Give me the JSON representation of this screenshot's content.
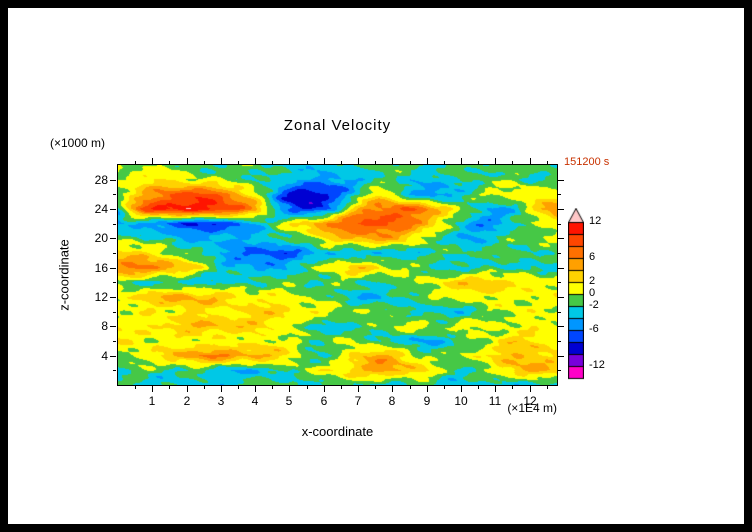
{
  "chart_data": {
    "type": "heatmap",
    "title": "Zonal Velocity",
    "time_annotation": "151200 s",
    "annotation_color": "#C83200",
    "xlabel": "x-coordinate",
    "x_unit": "(×1E4 m)",
    "ylabel": "z-coordinate",
    "y_unit": "(×1000 m)",
    "x_range": [
      0,
      12.8
    ],
    "z_range": [
      0,
      30
    ],
    "x_major_ticks": [
      1,
      2,
      3,
      4,
      5,
      6,
      7,
      8,
      9,
      10,
      11,
      12
    ],
    "x_minor_step": 0.5,
    "z_major_ticks": [
      4,
      8,
      12,
      16,
      20,
      24,
      28
    ],
    "z_minor_step": 2,
    "levels": [
      -12,
      -10,
      -8,
      -6,
      -4,
      -2,
      0,
      2,
      4,
      6,
      8,
      10,
      12
    ],
    "palette": [
      "#FF00C8",
      "#7800DC",
      "#0000D2",
      "#0046FF",
      "#0096FF",
      "#00C8E6",
      "#46C846",
      "#FFFF00",
      "#FFD200",
      "#FFA000",
      "#FF7000",
      "#FF4600",
      "#FF1400"
    ],
    "over_color": "#FFC8C8",
    "colorbar_labels": [
      12,
      6,
      2,
      0,
      -2,
      -6,
      -12
    ],
    "grid": {
      "x0": 0,
      "dx": 0.4,
      "nx": 33,
      "z0": 0,
      "dz": 2,
      "nz": 16
    },
    "values": [
      [
        -2,
        -2,
        -3,
        -3,
        -2,
        -2,
        -2,
        -3,
        -3,
        -2,
        -1,
        -1,
        -2,
        -3,
        -3,
        -2,
        -2,
        -1,
        -2,
        -3,
        -4,
        -3,
        -2,
        -2,
        -3,
        -3,
        -2,
        -2,
        -3,
        -4,
        -4,
        -3,
        -3
      ],
      [
        -2,
        -1,
        -1,
        -2,
        -2,
        -2,
        -2,
        -3,
        -3,
        -4,
        -4,
        -3,
        -2,
        -1,
        0,
        1,
        2,
        3,
        4,
        5,
        5,
        4,
        3,
        1,
        -1,
        -2,
        -2,
        -1,
        2,
        4,
        5,
        4,
        3
      ],
      [
        -1,
        0,
        1,
        2,
        4,
        5,
        6,
        6,
        6,
        5,
        5,
        4,
        3,
        1,
        -2,
        -3,
        -1,
        2,
        4,
        5,
        4,
        2,
        0,
        -1,
        -1,
        0,
        1,
        2,
        3,
        4,
        4,
        3,
        2
      ],
      [
        2,
        2,
        1,
        1,
        0,
        0,
        1,
        1,
        0,
        0,
        1,
        1,
        0,
        0,
        -1,
        -1,
        0,
        0,
        -1,
        -2,
        -3,
        -4,
        -4,
        -4,
        -3,
        -2,
        -1,
        0,
        2,
        3,
        3,
        2,
        1
      ],
      [
        1,
        1,
        2,
        2,
        3,
        4,
        4,
        4,
        4,
        3,
        3,
        2,
        1,
        0,
        -2,
        -3,
        -3,
        -3,
        -2,
        -1,
        0,
        1,
        1,
        0,
        0,
        1,
        1,
        1,
        0,
        0,
        1,
        1,
        1
      ],
      [
        1,
        0,
        1,
        1,
        1,
        2,
        2,
        1,
        1,
        2,
        3,
        3,
        3,
        2,
        1,
        1,
        1,
        0,
        0,
        -1,
        -1,
        -2,
        -3,
        -3,
        -3,
        -3,
        -2,
        -1,
        0,
        1,
        1,
        0,
        0
      ],
      [
        1,
        2,
        3,
        4,
        5,
        5,
        4,
        4,
        3,
        2,
        1,
        1,
        1,
        0,
        0,
        -1,
        -2,
        -3,
        -4,
        -4,
        -3,
        -2,
        -1,
        0,
        0,
        1,
        1,
        1,
        1,
        0,
        1,
        1,
        1
      ],
      [
        -1,
        -2,
        -2,
        -3,
        -3,
        -3,
        -3,
        -3,
        -3,
        -2,
        -2,
        -1,
        -1,
        -1,
        -2,
        -2,
        -1,
        -1,
        -2,
        -2,
        -1,
        -1,
        0,
        1,
        2,
        3,
        4,
        4,
        3,
        2,
        2,
        1,
        1
      ],
      [
        6,
        7,
        7,
        6,
        5,
        3,
        1,
        -1,
        -3,
        -4,
        -4,
        -4,
        -4,
        -3,
        -1,
        1,
        2,
        3,
        3,
        2,
        1,
        0,
        -1,
        -2,
        -3,
        -3,
        -3,
        -2,
        -2,
        -2,
        -3,
        -3,
        -2
      ],
      [
        3,
        3,
        2,
        1,
        0,
        -1,
        -2,
        -3,
        -5,
        -6,
        -7,
        -7,
        -7,
        -6,
        -5,
        -4,
        -3,
        -4,
        -4,
        -4,
        -4,
        -3,
        -3,
        -2,
        -1,
        -1,
        -2,
        -2,
        -1,
        -1,
        -2,
        -2,
        -1
      ],
      [
        -1,
        -1,
        -2,
        -2,
        -3,
        -4,
        -4,
        -4,
        -4,
        -4,
        -3,
        -3,
        -2,
        -1,
        0,
        2,
        3,
        4,
        5,
        5,
        4,
        3,
        1,
        -1,
        -3,
        -4,
        -4,
        -3,
        -2,
        -1,
        -1,
        0,
        0
      ],
      [
        -5,
        -4,
        -4,
        -6,
        -7,
        -8,
        -8,
        -8,
        -7,
        -6,
        -4,
        -2,
        0,
        2,
        4,
        6,
        7,
        8,
        9,
        9,
        8,
        7,
        5,
        3,
        0,
        -3,
        -5,
        -5,
        -4,
        -2,
        -1,
        0,
        1
      ],
      [
        -3,
        4,
        9,
        11,
        11,
        11,
        11,
        11,
        10,
        8,
        5,
        0,
        -5,
        -8,
        -9,
        -7,
        -3,
        2,
        5,
        7,
        8,
        8,
        7,
        5,
        3,
        0,
        -2,
        -4,
        -4,
        -3,
        0,
        4,
        7
      ],
      [
        0,
        2,
        4,
        6,
        8,
        9,
        9,
        8,
        6,
        4,
        1,
        -3,
        -7,
        -9,
        -10,
        -9,
        -7,
        -4,
        0,
        2,
        0,
        -3,
        -5,
        -6,
        -5,
        -3,
        -1,
        0,
        1,
        2,
        2,
        1,
        0
      ],
      [
        0,
        1,
        2,
        2,
        1,
        1,
        0,
        0,
        -1,
        -1,
        -2,
        -2,
        -3,
        -3,
        -4,
        -5,
        -5,
        -4,
        -3,
        -2,
        -2,
        -2,
        -3,
        -3,
        -3,
        -2,
        -2,
        -1,
        -1,
        -1,
        -2,
        -2,
        -1
      ],
      [
        -1,
        -1,
        0,
        0,
        -1,
        -1,
        -2,
        -2,
        -2,
        -1,
        -1,
        -2,
        -2,
        -3,
        -3,
        -3,
        -2,
        -2,
        -2,
        -1,
        -1,
        -2,
        -2,
        -2,
        -1,
        -1,
        -1,
        -2,
        -2,
        -1,
        -1,
        -1,
        -1
      ]
    ]
  }
}
